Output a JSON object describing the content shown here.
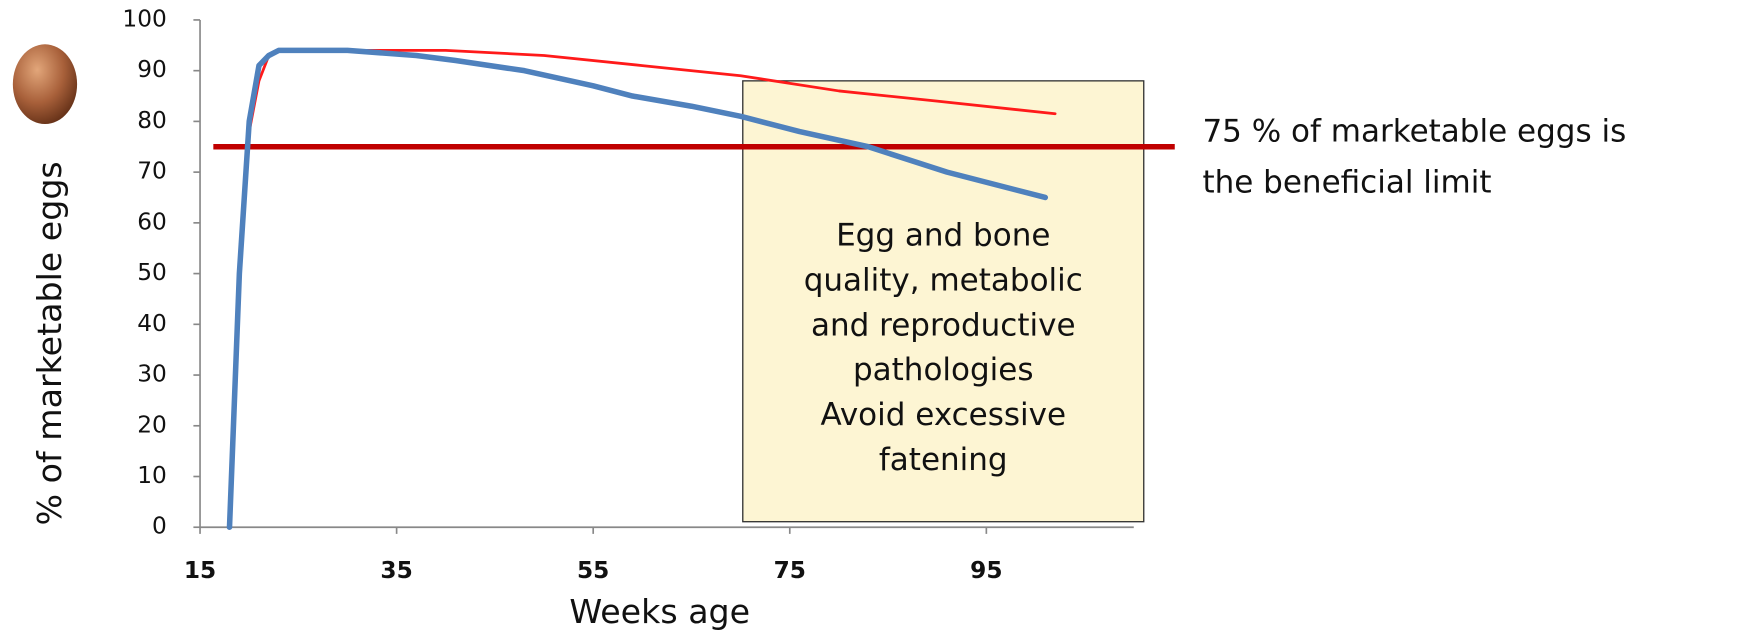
{
  "chart_data": {
    "type": "line",
    "y_label": "% of marketable eggs",
    "x_label": "Weeks age",
    "xlim": [
      15,
      110
    ],
    "xticks": [
      15,
      35,
      55,
      75,
      95
    ],
    "ylim": [
      0,
      100
    ],
    "yticks": [
      0,
      10,
      20,
      30,
      40,
      50,
      60,
      70,
      80,
      90,
      100
    ],
    "grid": false,
    "series": [
      {
        "color": "#ff1a1a",
        "x": [
          19,
          20,
          21,
          22,
          23,
          30,
          40,
          50,
          60,
          70,
          80,
          90,
          102
        ],
        "values": [
          52,
          78,
          88,
          93,
          94,
          94,
          94,
          93,
          91,
          89,
          86,
          84,
          81.5
        ]
      },
      {
        "color": "#4f81bd",
        "x": [
          18,
          19,
          20,
          21,
          22,
          23,
          30,
          37,
          41,
          48,
          55,
          59,
          65,
          70,
          76,
          83,
          91,
          101
        ],
        "values": [
          0,
          50,
          80,
          91,
          93,
          94,
          94,
          93,
          92,
          90,
          87,
          85,
          83,
          81,
          78,
          75,
          70,
          65
        ]
      }
    ],
    "hline": {
      "value": 75,
      "color": "#c00000"
    },
    "annotation": [
      "75 % of marketable eggs is",
      "the beneficial limit"
    ],
    "box_text": [
      "Egg and bone",
      "quality, metabolic",
      "and reproductive",
      "pathologies",
      "Avoid excessive",
      "fatening"
    ]
  }
}
